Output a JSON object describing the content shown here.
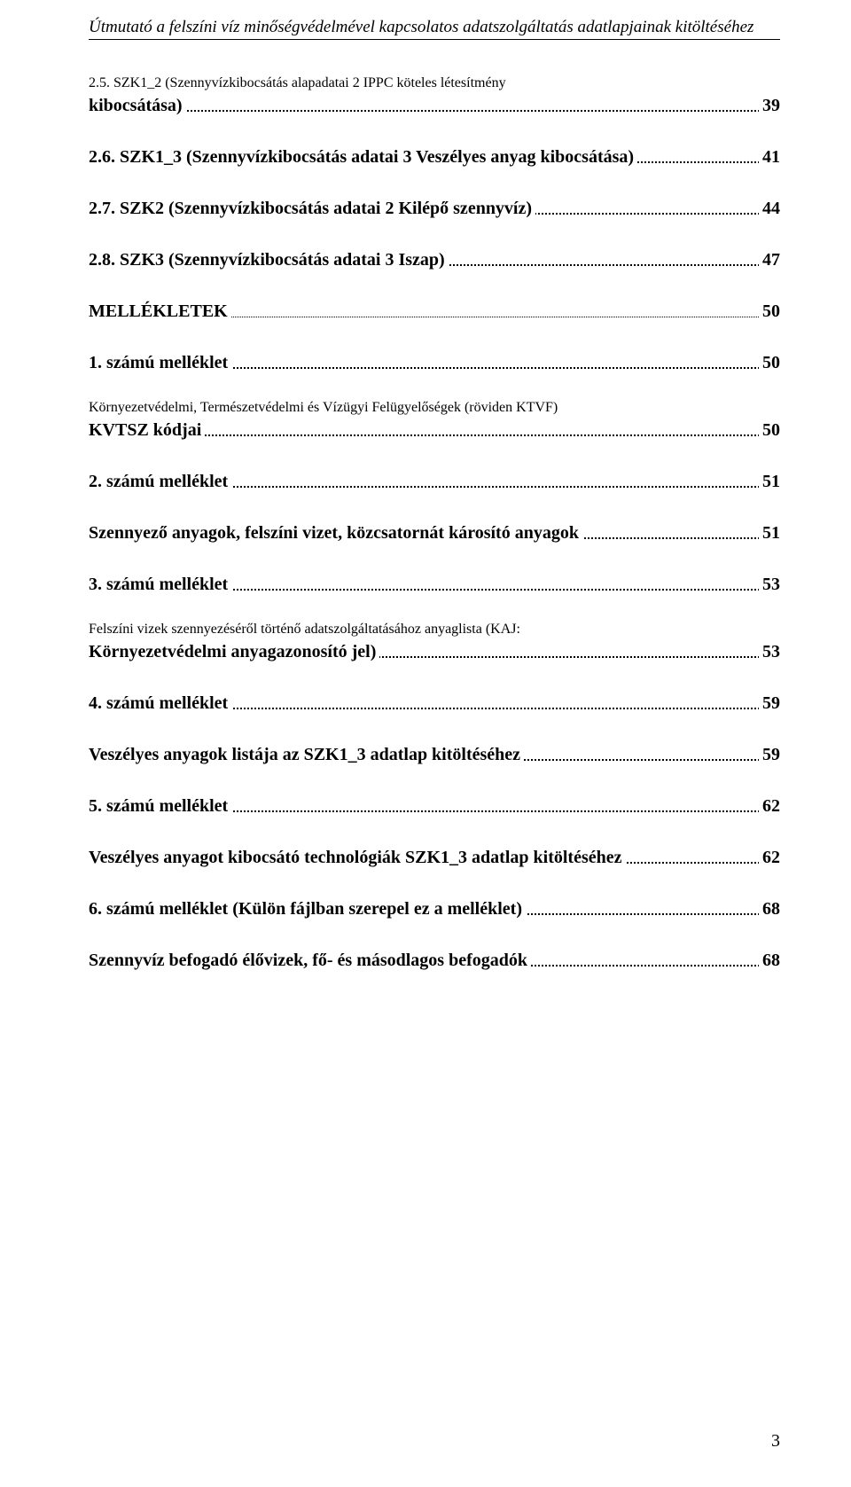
{
  "header": "Útmutató a felszíni víz minőségvédelmével kapcsolatos adatszolgáltatás adatlapjainak kitöltéséhez",
  "toc": [
    {
      "type": "wrap",
      "bold": true,
      "line1": "2.5. SZK1_2 (Szennyvízkibocsátás alapadatai 2 IPPC köteles létesítmény",
      "line2": "kibocsátása)",
      "page": "39"
    },
    {
      "type": "single",
      "bold": true,
      "label": "2.6. SZK1_3  (Szennyvízkibocsátás adatai 3 Veszélyes anyag kibocsátása)",
      "page": "41"
    },
    {
      "type": "single",
      "bold": true,
      "label": "2.7. SZK2 (Szennyvízkibocsátás adatai 2 Kilépő szennyvíz)",
      "page": "44"
    },
    {
      "type": "single",
      "bold": true,
      "label": "2.8. SZK3 (Szennyvízkibocsátás adatai 3 Iszap)",
      "page": "47"
    },
    {
      "type": "single",
      "bold": true,
      "caps": true,
      "label": "MELLÉKLETEK",
      "page": "50",
      "light": true
    },
    {
      "type": "single",
      "bold": true,
      "label": "1. számú melléklet",
      "page": "50"
    },
    {
      "type": "wrap",
      "bold": true,
      "line1": "Környezetvédelmi, Természetvédelmi és Vízügyi Felügyelőségek (röviden KTVF)",
      "line2": "KVTSZ kódjai",
      "page": "50"
    },
    {
      "type": "single",
      "bold": true,
      "label": "2. számú melléklet",
      "page": "51"
    },
    {
      "type": "single",
      "bold": true,
      "label": "Szennyező anyagok, felszíni vizet, közcsatornát károsító anyagok",
      "page": "51"
    },
    {
      "type": "single",
      "bold": true,
      "label": "3. számú melléklet",
      "page": "53"
    },
    {
      "type": "wrap",
      "bold": true,
      "line1": "Felszíni vizek szennyezéséről történő adatszolgáltatásához anyaglista (KAJ:",
      "line2": "Környezetvédelmi anyagazonosító jel)",
      "page": "53"
    },
    {
      "type": "single",
      "bold": true,
      "label": "4. számú melléklet",
      "page": "59"
    },
    {
      "type": "single",
      "bold": true,
      "label": "Veszélyes anyagok listája az SZK1_3 adatlap kitöltéséhez",
      "page": "59"
    },
    {
      "type": "single",
      "bold": true,
      "label": "5. számú melléklet",
      "page": "62"
    },
    {
      "type": "single",
      "bold": true,
      "label": "Veszélyes anyagot kibocsátó technológiák SZK1_3 adatlap kitöltéséhez",
      "page": "62"
    },
    {
      "type": "single",
      "bold": true,
      "label": "6. számú melléklet (Külön fájlban szerepel ez a melléklet)",
      "page": "68"
    },
    {
      "type": "single",
      "bold": true,
      "label": "Szennyvíz befogadó élővizek, fő- és másodlagos befogadók",
      "page": "68"
    }
  ],
  "pageNumber": "3",
  "style": {
    "background": "#ffffff",
    "textColor": "#000000",
    "fontFamily": "Times New Roman",
    "headerFontSize": 19,
    "bodyFontSize": 20,
    "pageWidth": 960,
    "pageHeight": 1677
  }
}
